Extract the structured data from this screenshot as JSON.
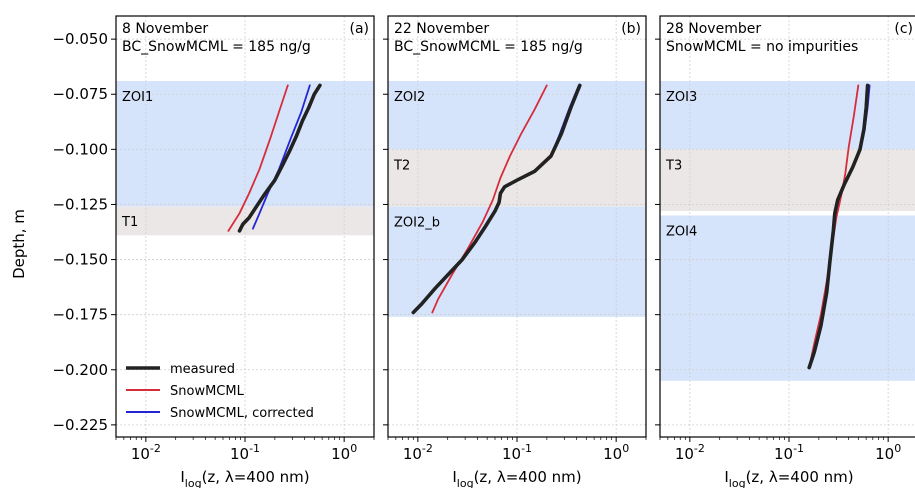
{
  "figure": {
    "ylabel": "Depth, m",
    "xlabel": "I",
    "xlabel_sub": "log",
    "xlabel_rest": "(z, λ=400 nm)",
    "legend": [
      "measured",
      "SnowMCML",
      "SnowMCML, corrected"
    ]
  },
  "colors": {
    "measured": "#222222",
    "snowmcml": "#d62d3a",
    "corrected": "#2424d6",
    "zoi_band": "#d6e4fb",
    "transition_band": "#ebe7e7"
  },
  "chart_data": [
    {
      "type": "line",
      "panel": "(a)",
      "title_lines": [
        "8 November",
        "BC_SnowMCML = 185 ng/g"
      ],
      "x_scale": "log",
      "xlim": [
        0.005,
        2.0
      ],
      "ylim": [
        -0.2305,
        -0.0395
      ],
      "xticks": [
        0.01,
        0.1,
        1
      ],
      "xtick_labels": [
        "10-2",
        "10-1",
        "100"
      ],
      "yticks": [
        -0.05,
        -0.075,
        -0.1,
        -0.125,
        -0.15,
        -0.175,
        -0.2,
        -0.225
      ],
      "ytick_labels": [
        "−0.050",
        "−0.075",
        "−0.100",
        "−0.125",
        "−0.150",
        "−0.175",
        "−0.200",
        "−0.225"
      ],
      "grid": true,
      "legend_placement": "bottom-left",
      "bands": [
        {
          "label": "ZOI1",
          "kind": "zoi",
          "y_range": [
            -0.069,
            -0.126
          ]
        },
        {
          "label": "T1",
          "kind": "transition",
          "y_range": [
            -0.126,
            -0.139
          ]
        }
      ],
      "series": [
        {
          "name": "measured",
          "points": [
            [
              0.57,
              -0.071
            ],
            [
              0.5,
              -0.075
            ],
            [
              0.44,
              -0.081
            ],
            [
              0.38,
              -0.087
            ],
            [
              0.33,
              -0.094
            ],
            [
              0.28,
              -0.101
            ],
            [
              0.24,
              -0.107
            ],
            [
              0.2,
              -0.114
            ],
            [
              0.16,
              -0.12
            ],
            [
              0.13,
              -0.126
            ],
            [
              0.11,
              -0.131
            ],
            [
              0.095,
              -0.134
            ],
            [
              0.088,
              -0.137
            ]
          ]
        },
        {
          "name": "SnowMCML",
          "points": [
            [
              0.27,
              -0.071
            ],
            [
              0.22,
              -0.083
            ],
            [
              0.18,
              -0.095
            ],
            [
              0.14,
              -0.109
            ],
            [
              0.11,
              -0.12
            ],
            [
              0.088,
              -0.129
            ],
            [
              0.068,
              -0.137
            ]
          ]
        },
        {
          "name": "SnowMCML, corrected",
          "points": [
            [
              0.45,
              -0.071
            ],
            [
              0.37,
              -0.083
            ],
            [
              0.29,
              -0.095
            ],
            [
              0.22,
              -0.109
            ],
            [
              0.17,
              -0.12
            ],
            [
              0.14,
              -0.129
            ],
            [
              0.12,
              -0.136
            ]
          ]
        }
      ]
    },
    {
      "type": "line",
      "panel": "(b)",
      "title_lines": [
        "22 November",
        "BC_SnowMCML = 185 ng/g"
      ],
      "x_scale": "log",
      "xlim": [
        0.005,
        2.0
      ],
      "ylim": [
        -0.2305,
        -0.0395
      ],
      "xticks": [
        0.01,
        0.1,
        1
      ],
      "xtick_labels": [
        "10-2",
        "10-1",
        "100"
      ],
      "grid": true,
      "bands": [
        {
          "label": "ZOI2",
          "kind": "zoi",
          "y_range": [
            -0.069,
            -0.1
          ]
        },
        {
          "label": "T2",
          "kind": "transition",
          "y_range": [
            -0.1,
            -0.126
          ]
        },
        {
          "label": "ZOI2_b",
          "kind": "zoi",
          "y_range": [
            -0.126,
            -0.176
          ]
        }
      ],
      "series": [
        {
          "name": "measured",
          "points": [
            [
              0.43,
              -0.071
            ],
            [
              0.35,
              -0.081
            ],
            [
              0.28,
              -0.093
            ],
            [
              0.22,
              -0.103
            ],
            [
              0.15,
              -0.11
            ],
            [
              0.1,
              -0.114
            ],
            [
              0.075,
              -0.117
            ],
            [
              0.068,
              -0.12
            ],
            [
              0.066,
              -0.124
            ],
            [
              0.06,
              -0.128
            ],
            [
              0.048,
              -0.135
            ],
            [
              0.038,
              -0.142
            ],
            [
              0.028,
              -0.15
            ],
            [
              0.02,
              -0.157
            ],
            [
              0.015,
              -0.163
            ],
            [
              0.011,
              -0.17
            ],
            [
              0.009,
              -0.174
            ]
          ]
        },
        {
          "name": "SnowMCML",
          "points": [
            [
              0.2,
              -0.071
            ],
            [
              0.15,
              -0.082
            ],
            [
              0.11,
              -0.093
            ],
            [
              0.085,
              -0.103
            ],
            [
              0.068,
              -0.113
            ],
            [
              0.057,
              -0.123
            ],
            [
              0.045,
              -0.133
            ],
            [
              0.032,
              -0.145
            ],
            [
              0.022,
              -0.157
            ],
            [
              0.016,
              -0.168
            ],
            [
              0.014,
              -0.174
            ]
          ]
        },
        {
          "name": "SnowMCML, corrected",
          "points": [
            [
              0.42,
              -0.071
            ],
            [
              0.34,
              -0.081
            ],
            [
              0.27,
              -0.093
            ],
            [
              0.22,
              -0.103
            ]
          ]
        }
      ]
    },
    {
      "type": "line",
      "panel": "(c)",
      "title_lines": [
        "28 November",
        "SnowMCML = no impurities"
      ],
      "x_scale": "log",
      "xlim": [
        0.005,
        2.0
      ],
      "ylim": [
        -0.2305,
        -0.0395
      ],
      "xticks": [
        0.01,
        0.1,
        1
      ],
      "xtick_labels": [
        "10-2",
        "10-1",
        "100"
      ],
      "grid": true,
      "bands": [
        {
          "label": "ZOI3",
          "kind": "zoi",
          "y_range": [
            -0.069,
            -0.1
          ]
        },
        {
          "label": "T3",
          "kind": "transition",
          "y_range": [
            -0.1,
            -0.128
          ]
        },
        {
          "label": "ZOI4",
          "kind": "zoi",
          "y_range": [
            -0.13,
            -0.205
          ]
        }
      ],
      "series": [
        {
          "name": "measured",
          "points": [
            [
              0.62,
              -0.071
            ],
            [
              0.6,
              -0.081
            ],
            [
              0.57,
              -0.091
            ],
            [
              0.52,
              -0.1
            ],
            [
              0.44,
              -0.108
            ],
            [
              0.36,
              -0.116
            ],
            [
              0.31,
              -0.123
            ],
            [
              0.29,
              -0.129
            ],
            [
              0.28,
              -0.137
            ],
            [
              0.26,
              -0.15
            ],
            [
              0.24,
              -0.165
            ],
            [
              0.21,
              -0.18
            ],
            [
              0.18,
              -0.192
            ],
            [
              0.16,
              -0.199
            ]
          ]
        },
        {
          "name": "SnowMCML",
          "points": [
            [
              0.5,
              -0.071
            ],
            [
              0.45,
              -0.085
            ],
            [
              0.4,
              -0.099
            ],
            [
              0.37,
              -0.111
            ],
            [
              0.34,
              -0.12
            ],
            [
              0.3,
              -0.131
            ],
            [
              0.27,
              -0.145
            ],
            [
              0.24,
              -0.16
            ],
            [
              0.21,
              -0.175
            ],
            [
              0.18,
              -0.188
            ],
            [
              0.16,
              -0.199
            ]
          ]
        },
        {
          "name": "SnowMCML, corrected",
          "points": [
            [
              0.65,
              -0.071
            ],
            [
              0.62,
              -0.081
            ],
            [
              0.58,
              -0.091
            ],
            [
              0.52,
              -0.1
            ]
          ]
        }
      ]
    }
  ]
}
